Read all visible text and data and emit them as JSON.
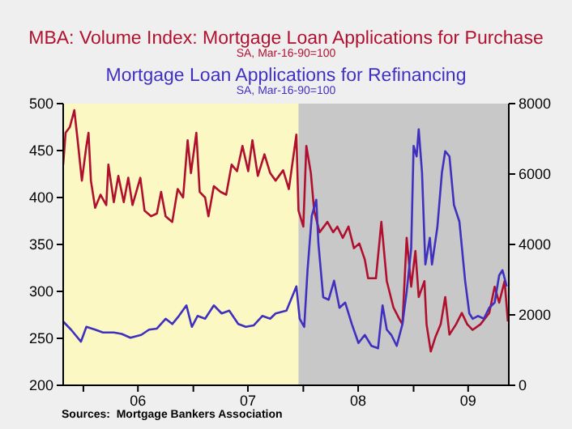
{
  "chart_data": {
    "type": "line",
    "legend": "top",
    "marker": "none",
    "line_style": "solid",
    "annotations": [
      "SA, Mar-16-90=100",
      "SA, Mar-16-90=100",
      "Sources:  Mortgage Bankers Association"
    ],
    "xlim": [
      "2005-10-26",
      "2009-11-13"
    ],
    "xticks": [
      {
        "value": "2006-01-01",
        "label": null
      },
      {
        "value": "2006-07-01",
        "label": "06"
      },
      {
        "value": "2007-01-01",
        "label": null
      },
      {
        "value": "2007-07-01",
        "label": "07"
      },
      {
        "value": "2008-01-01",
        "label": null
      },
      {
        "value": "2008-07-01",
        "label": "08"
      },
      {
        "value": "2009-01-01",
        "label": null
      },
      {
        "value": "2009-07-01",
        "label": "09"
      }
    ],
    "ylim": [
      200,
      500
    ],
    "yticks": [
      200,
      250,
      300,
      350,
      400,
      450,
      500
    ],
    "y2lim": [
      0,
      8000
    ],
    "y2ticks": [
      0,
      2000,
      4000,
      6000,
      8000
    ],
    "bands": [
      {
        "axis": "x",
        "from": "2007-12-16",
        "to": "2009-11-13",
        "label": null,
        "color": "#c8c8c8"
      }
    ],
    "series": [
      {
        "name": "MBA: Volume Index: Mortgage Loan Applications for Purchase",
        "color": "#b0102e",
        "x": [
          "2005-10-26",
          "2005-11-03",
          "2005-11-17",
          "2005-12-02",
          "2005-12-13",
          "2005-12-27",
          "2006-01-11",
          "2006-01-18",
          "2006-01-26",
          "2006-02-09",
          "2006-02-27",
          "2006-03-18",
          "2006-03-25",
          "2006-04-12",
          "2006-04-27",
          "2006-05-15",
          "2006-05-30",
          "2006-06-13",
          "2006-07-09",
          "2006-07-23",
          "2006-08-14",
          "2006-09-02",
          "2006-09-16",
          "2006-10-01",
          "2006-10-23",
          "2006-11-10",
          "2006-11-28",
          "2006-12-13",
          "2006-12-24",
          "2007-01-11",
          "2007-01-22",
          "2007-02-09",
          "2007-02-20",
          "2007-03-10",
          "2007-04-01",
          "2007-04-20",
          "2007-05-08",
          "2007-05-26",
          "2007-06-13",
          "2007-07-02",
          "2007-07-16",
          "2007-08-03",
          "2007-08-25",
          "2007-09-13",
          "2007-10-01",
          "2007-10-26",
          "2007-11-14",
          "2007-12-09",
          "2007-12-16",
          "2008-01-01",
          "2008-01-11",
          "2008-01-26",
          "2008-02-06",
          "2008-02-24",
          "2008-03-21",
          "2008-04-09",
          "2008-04-23",
          "2008-05-11",
          "2008-05-30",
          "2008-06-17",
          "2008-07-05",
          "2008-07-23",
          "2008-08-03",
          "2008-08-29",
          "2008-09-16",
          "2008-10-04",
          "2008-10-26",
          "2008-11-14",
          "2008-11-25",
          "2008-12-09",
          "2008-12-24",
          "2009-01-07",
          "2009-01-18",
          "2009-02-06",
          "2009-02-13",
          "2009-02-27",
          "2009-03-14",
          "2009-04-01",
          "2009-04-16",
          "2009-04-30",
          "2009-05-22",
          "2009-06-10",
          "2009-06-28",
          "2009-07-16",
          "2009-08-11",
          "2009-09-09",
          "2009-09-27",
          "2009-10-12",
          "2009-10-30",
          "2009-11-10"
        ],
        "values": [
          435,
          469,
          475,
          493,
          461,
          418,
          455,
          469,
          418,
          389,
          403,
          392,
          435,
          395,
          423,
          395,
          421,
          392,
          421,
          386,
          380,
          383,
          406,
          380,
          374,
          409,
          400,
          461,
          426,
          469,
          406,
          400,
          380,
          412,
          406,
          403,
          435,
          428,
          455,
          428,
          461,
          423,
          446,
          426,
          418,
          429,
          409,
          467,
          386,
          369,
          455,
          426,
          386,
          363,
          374,
          363,
          369,
          357,
          369,
          346,
          351,
          334,
          314,
          314,
          374,
          311,
          283,
          271,
          265,
          357,
          305,
          343,
          294,
          311,
          265,
          236,
          251,
          265,
          294,
          254,
          265,
          277,
          265,
          259,
          265,
          277,
          305,
          288,
          311,
          268
        ]
      },
      {
        "name": "Mortgage Loan Applications for Refinancing",
        "color": "#4030c0",
        "axis": "y2",
        "x": [
          "2005-10-26",
          "2005-11-21",
          "2005-12-24",
          "2006-01-11",
          "2006-02-09",
          "2006-03-07",
          "2006-04-12",
          "2006-05-08",
          "2006-06-06",
          "2006-07-12",
          "2006-08-07",
          "2006-09-02",
          "2006-10-01",
          "2006-10-23",
          "2006-11-14",
          "2006-12-09",
          "2006-12-27",
          "2007-01-15",
          "2007-02-09",
          "2007-03-10",
          "2007-04-05",
          "2007-04-30",
          "2007-05-30",
          "2007-06-24",
          "2007-07-20",
          "2007-08-18",
          "2007-09-13",
          "2007-10-01",
          "2007-11-06",
          "2007-12-09",
          "2007-12-20",
          "2008-01-04",
          "2008-01-15",
          "2008-01-29",
          "2008-02-13",
          "2008-02-20",
          "2008-03-07",
          "2008-03-25",
          "2008-04-12",
          "2008-04-30",
          "2008-05-19",
          "2008-06-10",
          "2008-07-02",
          "2008-07-23",
          "2008-08-14",
          "2008-09-05",
          "2008-09-20",
          "2008-10-04",
          "2008-10-19",
          "2008-11-06",
          "2008-11-25",
          "2008-12-09",
          "2008-12-24",
          "2009-01-01",
          "2009-01-11",
          "2009-01-18",
          "2009-01-29",
          "2009-02-09",
          "2009-02-24",
          "2009-03-03",
          "2009-03-21",
          "2009-04-05",
          "2009-04-16",
          "2009-04-30",
          "2009-05-15",
          "2009-06-02",
          "2009-06-21",
          "2009-07-05",
          "2009-07-16",
          "2009-08-03",
          "2009-08-22",
          "2009-09-09",
          "2009-09-27",
          "2009-10-12",
          "2009-10-23",
          "2009-11-06"
        ],
        "values": [
          1810,
          1580,
          1240,
          1660,
          1580,
          1500,
          1500,
          1460,
          1350,
          1430,
          1580,
          1610,
          1890,
          1740,
          1970,
          2270,
          1660,
          1970,
          1890,
          2270,
          2040,
          2120,
          1740,
          1660,
          1700,
          1970,
          1890,
          2040,
          2120,
          2810,
          1890,
          1660,
          3270,
          4810,
          5270,
          4040,
          2500,
          2430,
          2970,
          2200,
          2350,
          1740,
          1200,
          1430,
          1120,
          1050,
          2270,
          1580,
          1430,
          1120,
          1740,
          2660,
          3890,
          6800,
          6500,
          7270,
          6040,
          3430,
          4190,
          3430,
          4500,
          6040,
          6650,
          6500,
          5120,
          4650,
          2970,
          2040,
          1890,
          1970,
          1890,
          2200,
          2350,
          3120,
          3270,
          2810
        ]
      }
    ]
  }
}
